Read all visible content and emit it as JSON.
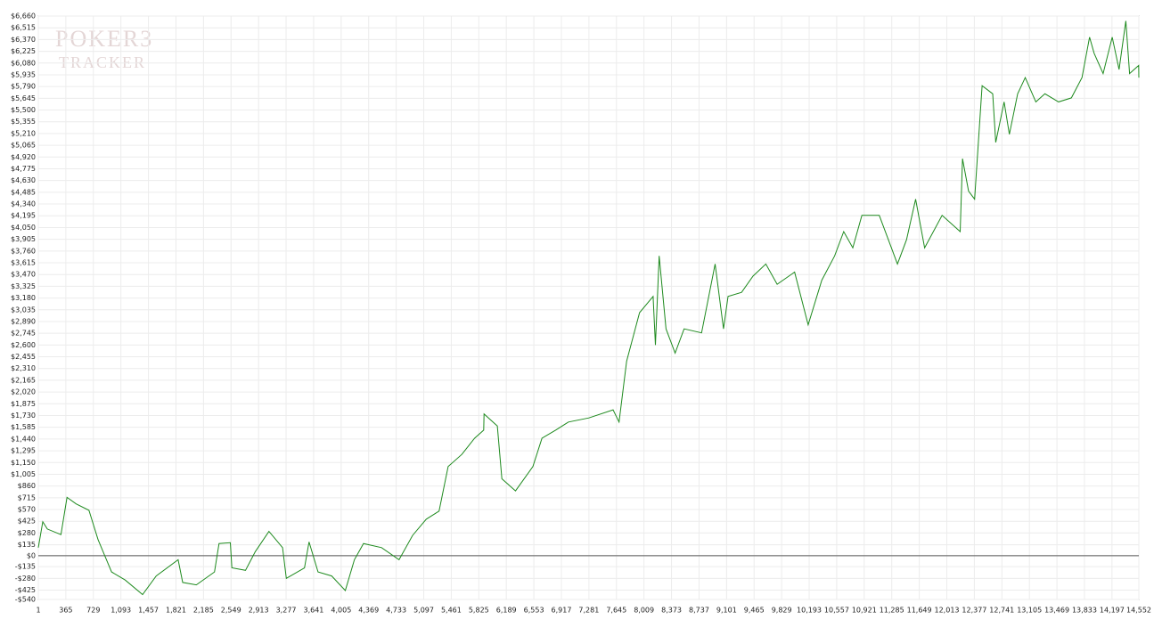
{
  "chart_data": {
    "type": "line",
    "watermark": [
      "POKER3",
      "TRACKER"
    ],
    "x": [
      1,
      60,
      120,
      300,
      380,
      500,
      670,
      790,
      880,
      970,
      1150,
      1380,
      1560,
      1850,
      1910,
      2090,
      2330,
      2390,
      2540,
      2560,
      2740,
      2870,
      3050,
      3230,
      3280,
      3520,
      3580,
      3700,
      3880,
      4060,
      4180,
      4300,
      4540,
      4770,
      4950,
      5130,
      5300,
      5420,
      5600,
      5770,
      5890,
      5895,
      6070,
      6130,
      6310,
      6540,
      6660,
      6840,
      7010,
      7280,
      7600,
      7680,
      7780,
      7950,
      8130,
      8160,
      8210,
      8300,
      8420,
      8540,
      8770,
      8950,
      9060,
      9120,
      9300,
      9450,
      9620,
      9770,
      10000,
      10180,
      10360,
      10530,
      10650,
      10770,
      10890,
      11120,
      11240,
      11360,
      11480,
      11600,
      11720,
      11950,
      12190,
      12220,
      12300,
      12380,
      12480,
      12620,
      12660,
      12770,
      12840,
      12950,
      13050,
      13190,
      13310,
      13490,
      13660,
      13800,
      13900,
      13960,
      14080,
      14200,
      14290,
      14380,
      14430,
      14550,
      14552
    ],
    "series": [
      {
        "color": "#1e8a1e",
        "values": [
          100,
          420,
          330,
          260,
          720,
          640,
          560,
          200,
          0,
          -200,
          -300,
          -480,
          -250,
          -50,
          -330,
          -360,
          -200,
          150,
          160,
          -150,
          -180,
          50,
          300,
          100,
          -280,
          -150,
          170,
          -200,
          -250,
          -430,
          -50,
          150,
          100,
          -50,
          250,
          450,
          550,
          1100,
          1250,
          1450,
          1550,
          1750,
          1600,
          950,
          800,
          1100,
          1450,
          1550,
          1650,
          1700,
          1800,
          1650,
          2400,
          3000,
          3200,
          2600,
          3700,
          2800,
          2500,
          2800,
          2750,
          3600,
          2800,
          3200,
          3250,
          3450,
          3600,
          3350,
          3500,
          2850,
          3400,
          3700,
          4000,
          3800,
          4200,
          4200,
          3900,
          3600,
          3900,
          4400,
          3800,
          4200,
          4000,
          4900,
          4500,
          4400,
          5800,
          5700,
          5100,
          5600,
          5200,
          5700,
          5900,
          5600,
          5700,
          5600,
          5650,
          5900,
          6400,
          6200,
          5950,
          6400,
          6000,
          6600,
          5950,
          6050,
          5900
        ]
      }
    ],
    "xlim": [
      1,
      14552
    ],
    "xticks": [
      1,
      365,
      729,
      {
        "value": 1093,
        "label": "1,093"
      },
      {
        "value": 1457,
        "label": "1,457"
      },
      {
        "value": 1821,
        "label": "1,821"
      },
      {
        "value": 2185,
        "label": "2,185"
      },
      {
        "value": 2549,
        "label": "2,549"
      },
      {
        "value": 2913,
        "label": "2,913"
      },
      {
        "value": 3277,
        "label": "3,277"
      },
      {
        "value": 3641,
        "label": "3,641"
      },
      {
        "value": 4005,
        "label": "4,005"
      },
      {
        "value": 4369,
        "label": "4,369"
      },
      {
        "value": 4733,
        "label": "4,733"
      },
      {
        "value": 5097,
        "label": "5,097"
      },
      {
        "value": 5461,
        "label": "5,461"
      },
      {
        "value": 5825,
        "label": "5,825"
      },
      {
        "value": 6189,
        "label": "6,189"
      },
      {
        "value": 6553,
        "label": "6,553"
      },
      {
        "value": 6917,
        "label": "6,917"
      },
      {
        "value": 7281,
        "label": "7,281"
      },
      {
        "value": 7645,
        "label": "7,645"
      },
      {
        "value": 8009,
        "label": "8,009"
      },
      {
        "value": 8373,
        "label": "8,373"
      },
      {
        "value": 8737,
        "label": "8,737"
      },
      {
        "value": 9101,
        "label": "9,101"
      },
      {
        "value": 9465,
        "label": "9,465"
      },
      {
        "value": 9829,
        "label": "9,829"
      },
      {
        "value": 10193,
        "label": "10,193"
      },
      {
        "value": 10557,
        "label": "10,557"
      },
      {
        "value": 10921,
        "label": "10,921"
      },
      {
        "value": 11285,
        "label": "11,285"
      },
      {
        "value": 11649,
        "label": "11,649"
      },
      {
        "value": 12013,
        "label": "12,013"
      },
      {
        "value": 12377,
        "label": "12,377"
      },
      {
        "value": 12741,
        "label": "12,741"
      },
      {
        "value": 13105,
        "label": "13,105"
      },
      {
        "value": 13469,
        "label": "13,469"
      },
      {
        "value": 13833,
        "label": "13,833"
      },
      {
        "value": 14197,
        "label": "14,197"
      },
      {
        "value": 14552,
        "label": "14,552"
      }
    ],
    "ylim": [
      -540,
      6660
    ],
    "yticks": [
      {
        "value": -540,
        "label": "-$540"
      },
      {
        "value": -425,
        "label": "-$425"
      },
      {
        "value": -280,
        "label": "-$280"
      },
      {
        "value": -135,
        "label": "-$135"
      },
      {
        "value": 0,
        "label": "$0"
      },
      {
        "value": 135,
        "label": "$135"
      },
      {
        "value": 280,
        "label": "$280"
      },
      {
        "value": 425,
        "label": "$425"
      },
      {
        "value": 570,
        "label": "$570"
      },
      {
        "value": 715,
        "label": "$715"
      },
      {
        "value": 860,
        "label": "$860"
      },
      {
        "value": 1005,
        "label": "$1,005"
      },
      {
        "value": 1150,
        "label": "$1,150"
      },
      {
        "value": 1295,
        "label": "$1,295"
      },
      {
        "value": 1440,
        "label": "$1,440"
      },
      {
        "value": 1585,
        "label": "$1,585"
      },
      {
        "value": 1730,
        "label": "$1,730"
      },
      {
        "value": 1875,
        "label": "$1,875"
      },
      {
        "value": 2020,
        "label": "$2,020"
      },
      {
        "value": 2165,
        "label": "$2,165"
      },
      {
        "value": 2310,
        "label": "$2,310"
      },
      {
        "value": 2455,
        "label": "$2,455"
      },
      {
        "value": 2600,
        "label": "$2,600"
      },
      {
        "value": 2745,
        "label": "$2,745"
      },
      {
        "value": 2890,
        "label": "$2,890"
      },
      {
        "value": 3035,
        "label": "$3,035"
      },
      {
        "value": 3180,
        "label": "$3,180"
      },
      {
        "value": 3325,
        "label": "$3,325"
      },
      {
        "value": 3470,
        "label": "$3,470"
      },
      {
        "value": 3615,
        "label": "$3,615"
      },
      {
        "value": 3760,
        "label": "$3,760"
      },
      {
        "value": 3905,
        "label": "$3,905"
      },
      {
        "value": 4050,
        "label": "$4,050"
      },
      {
        "value": 4195,
        "label": "$4,195"
      },
      {
        "value": 4340,
        "label": "$4,340"
      },
      {
        "value": 4485,
        "label": "$4,485"
      },
      {
        "value": 4630,
        "label": "$4,630"
      },
      {
        "value": 4775,
        "label": "$4,775"
      },
      {
        "value": 4920,
        "label": "$4,920"
      },
      {
        "value": 5065,
        "label": "$5,065"
      },
      {
        "value": 5210,
        "label": "$5,210"
      },
      {
        "value": 5355,
        "label": "$5,355"
      },
      {
        "value": 5500,
        "label": "$5,500"
      },
      {
        "value": 5645,
        "label": "$5,645"
      },
      {
        "value": 5790,
        "label": "$5,790"
      },
      {
        "value": 5935,
        "label": "$5,935"
      },
      {
        "value": 6080,
        "label": "$6,080"
      },
      {
        "value": 6225,
        "label": "$6,225"
      },
      {
        "value": 6370,
        "label": "$6,370"
      },
      {
        "value": 6515,
        "label": "$6,515"
      },
      {
        "value": 6660,
        "label": "$6,660"
      }
    ],
    "grid": true,
    "zero_line": true
  }
}
